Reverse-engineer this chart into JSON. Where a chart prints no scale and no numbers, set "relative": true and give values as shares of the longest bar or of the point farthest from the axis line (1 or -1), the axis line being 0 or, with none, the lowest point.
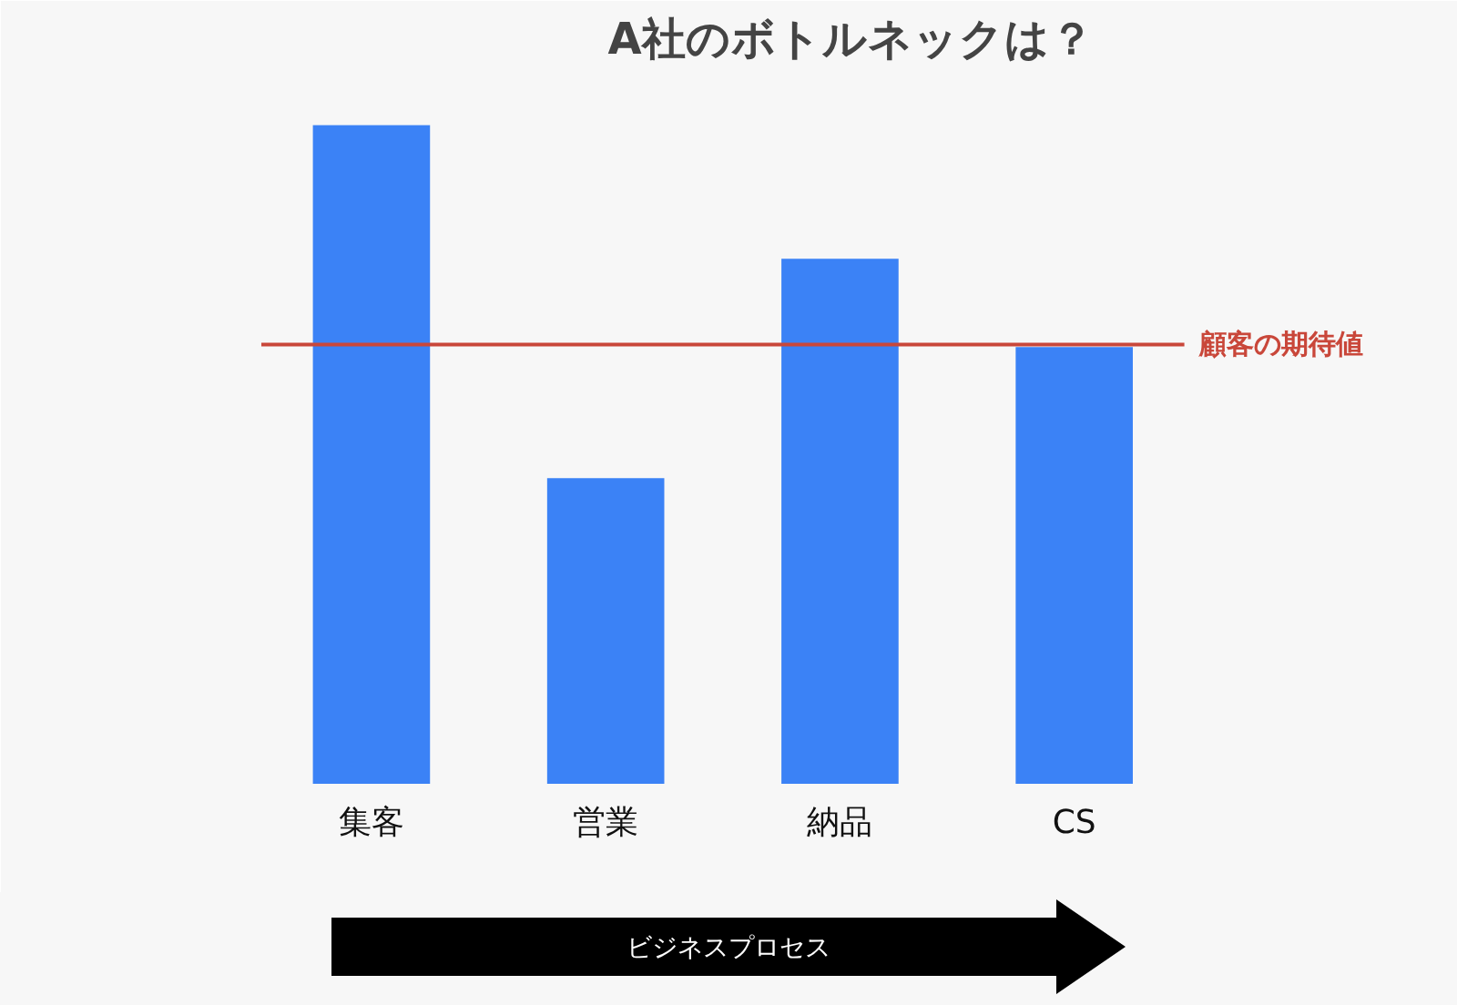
{
  "chart_data": {
    "type": "bar",
    "title": "A社のボトルネックは？",
    "categories": [
      "集客",
      "営業",
      "納品",
      "CS"
    ],
    "values": [
      1,
      0.464,
      0.797,
      0.663
    ],
    "color": "#3b82f6",
    "relative": true,
    "ref_lines": [
      {
        "axis": "y",
        "value": 0.667,
        "label": "顧客の期待値",
        "color": "#c9473a"
      }
    ],
    "annotations": [
      "ビジネスプロセス"
    ]
  }
}
